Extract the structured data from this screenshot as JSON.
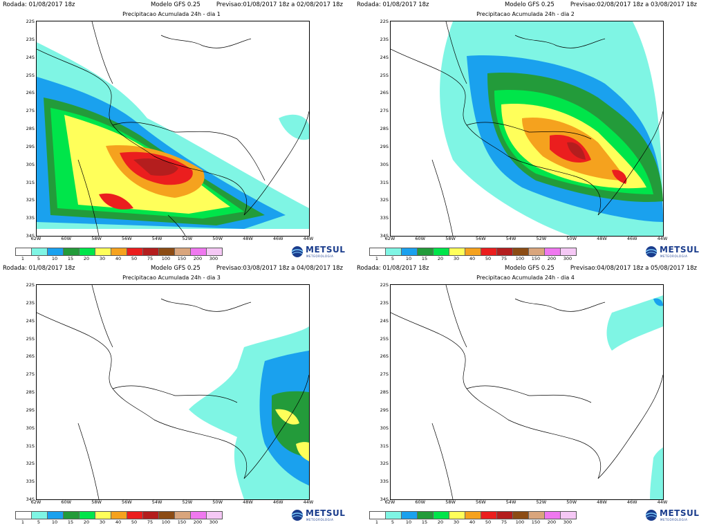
{
  "colors": {
    "c1": "#ffffff",
    "c5": "#7ff5e4",
    "c10": "#1aa1ee",
    "c15": "#239b3a",
    "c20": "#00e54a",
    "c30": "#ffff5a",
    "c40": "#f5a21e",
    "c50": "#eb1e1e",
    "c75": "#b41e1e",
    "c100": "#8c4c14",
    "c150": "#d9a57c",
    "c200": "#ef78ef",
    "c300": "#f5c8f5",
    "brand": "#1a3c8c"
  },
  "legend": {
    "swatch_colors": [
      "#ffffff",
      "#7ff5e4",
      "#1aa1ee",
      "#239b3a",
      "#00e54a",
      "#ffff5a",
      "#f5a21e",
      "#eb1e1e",
      "#b41e1e",
      "#8c4c14",
      "#d9a57c",
      "#ef78ef",
      "#f5c8f5"
    ],
    "labels": [
      "1",
      "5",
      "10",
      "15",
      "20",
      "30",
      "40",
      "50",
      "75",
      "100",
      "150",
      "200",
      "300"
    ]
  },
  "axes": {
    "lat_labels": [
      "22S",
      "23S",
      "24S",
      "25S",
      "26S",
      "27S",
      "28S",
      "29S",
      "30S",
      "31S",
      "32S",
      "33S",
      "34S"
    ],
    "lon_labels": [
      "62W",
      "60W",
      "58W",
      "56W",
      "54W",
      "52W",
      "50W",
      "48W",
      "46W",
      "44W"
    ]
  },
  "logo": {
    "name": "METSUL",
    "tagline": "METEOROLOGIA",
    "icon": "globe-icon"
  },
  "panels": [
    {
      "rodada": "Rodada: 01/08/2017 18z",
      "modelo": "Modelo GFS 0.25",
      "previsao": "Previsao:01/08/2017 18z a 02/08/2017 18z",
      "titulo": "Precipitacao Acumulada 24h - dia 1"
    },
    {
      "rodada": "Rodada: 01/08/2017 18z",
      "modelo": "Modelo GFS 0.25",
      "previsao": "Previsao:02/08/2017 18z a 03/08/2017 18z",
      "titulo": "Precipitacao Acumulada 24h - dia 2"
    },
    {
      "rodada": "Rodada: 01/08/2017 18z",
      "modelo": "Modelo GFS 0.25",
      "previsao": "Previsao:03/08/2017 18z a 04/08/2017 18z",
      "titulo": "Precipitacao Acumulada 24h - dia 3"
    },
    {
      "rodada": "Rodada: 01/08/2017 18z",
      "modelo": "Modelo GFS 0.25",
      "previsao": "Previsao:04/08/2017 18z a 05/08/2017 18z",
      "titulo": "Precipitacao Acumulada 24h - dia 4"
    }
  ]
}
